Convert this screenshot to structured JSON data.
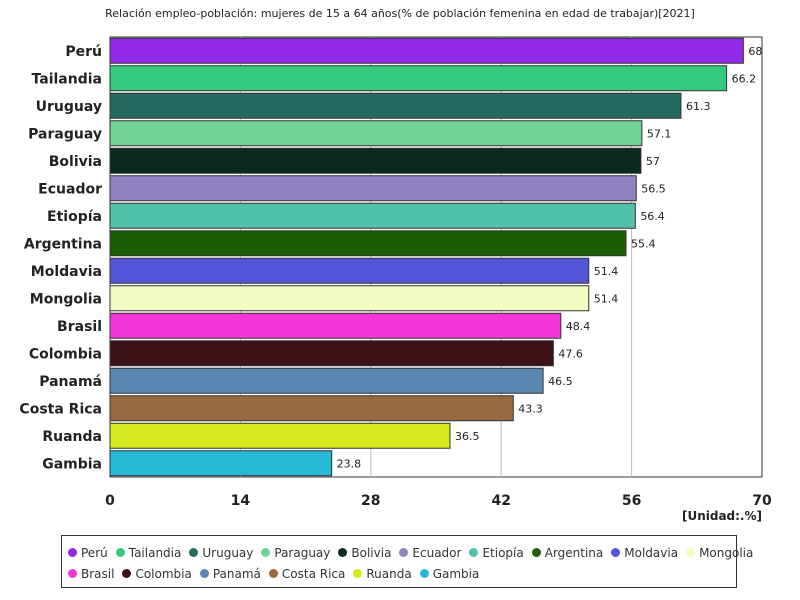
{
  "chart_data": {
    "type": "bar",
    "orientation": "horizontal",
    "title": "Relación empleo-población: mujeres de 15 a 64 años(% de población femenina en edad de trabajar)[2021]",
    "unit_label": "[Unidad:.%]",
    "xlim": [
      0,
      70
    ],
    "x_ticks": [
      "0",
      "14",
      "28",
      "42",
      "56",
      "70"
    ],
    "grid": true,
    "legend_position": "bottom",
    "categories": [
      "Perú",
      "Tailandia",
      "Uruguay",
      "Paraguay",
      "Bolivia",
      "Ecuador",
      "Etiopía",
      "Argentina",
      "Moldavia",
      "Mongolia",
      "Brasil",
      "Colombia",
      "Panamá",
      "Costa Rica",
      "Ruanda",
      "Gambia"
    ],
    "values": [
      68,
      66.2,
      61.3,
      57.1,
      57,
      56.5,
      56.4,
      55.4,
      51.4,
      51.4,
      48.4,
      47.6,
      46.5,
      43.3,
      36.5,
      23.8
    ],
    "value_labels": [
      "68",
      "66.2",
      "61.3",
      "57.1",
      "57",
      "56.5",
      "56.4",
      "55.4",
      "51.4",
      "51.4",
      "48.4",
      "47.6",
      "46.5",
      "43.3",
      "36.5",
      "23.8"
    ],
    "colors": [
      "#9228e9",
      "#34c97d",
      "#256a62",
      "#74d394",
      "#0b2a1e",
      "#9282c2",
      "#52c1ac",
      "#1c5e05",
      "#5355d8",
      "#f2fdc4",
      "#f336d8",
      "#3d1218",
      "#5a87b1",
      "#996a3f",
      "#d8e81f",
      "#27b8d6"
    ]
  },
  "legend": {
    "rows": [
      [
        "Perú",
        "Tailandia",
        "Uruguay",
        "Paraguay",
        "Bolivia",
        "Ecuador",
        "Etiopía",
        "Argentina",
        "Moldavia",
        "Mongolia"
      ],
      [
        "Brasil",
        "Colombia",
        "Panamá",
        "Costa Rica",
        "Ruanda",
        "Gambia"
      ]
    ]
  }
}
